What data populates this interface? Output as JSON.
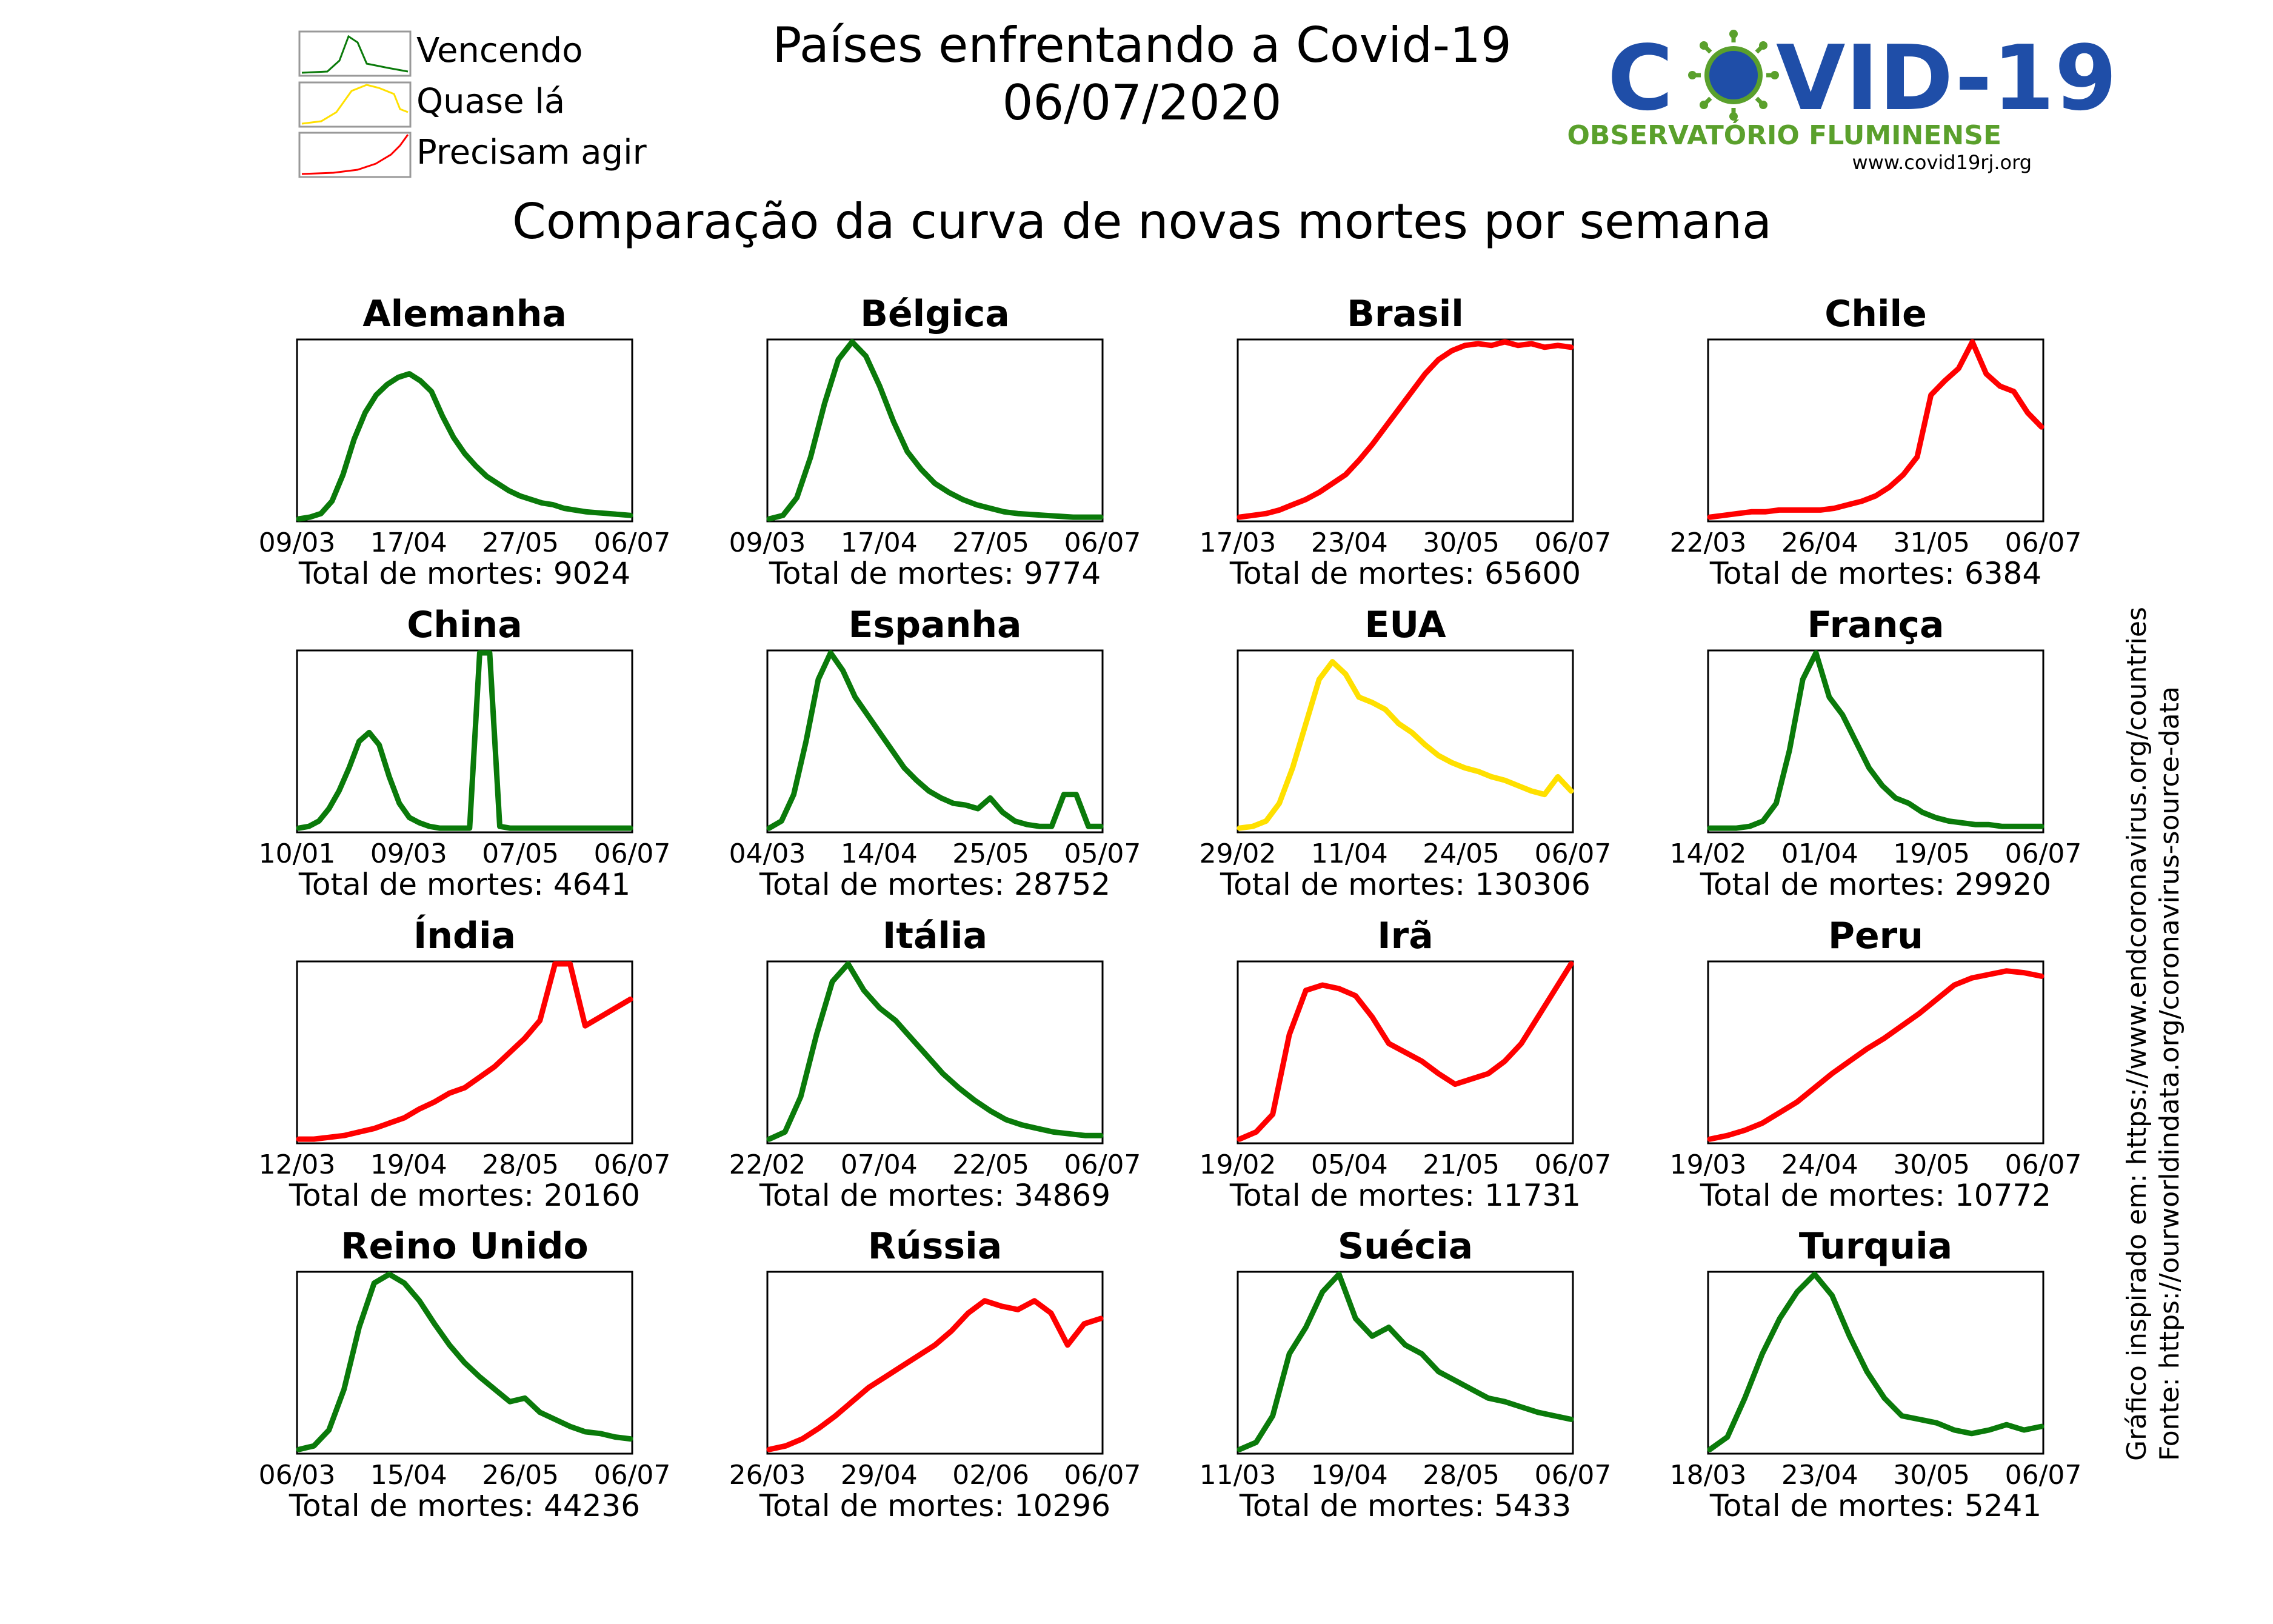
{
  "header": {
    "title_line1": "Países enfrentando a Covid-19",
    "title_line2": "06/07/2020",
    "subtitle": "Comparação da curva de novas mortes por semana"
  },
  "legend": {
    "items": [
      {
        "label": "Vencendo",
        "status": "vencendo"
      },
      {
        "label": "Quase lá",
        "status": "quase"
      },
      {
        "label": "Precisam agir",
        "status": "agir"
      }
    ]
  },
  "logo": {
    "covid_left": "C",
    "covid_right": "VID-19",
    "org": "OBSERVATÓRIO FLUMINENSE",
    "url": "www.covid19rj.org",
    "icon": "virus-icon"
  },
  "side_note": {
    "line1": "Gráfico inspirado em: https://www.endcoronavirus.org/countries",
    "line2": "Fonte: https://ourworldindata.org/coronavirus-source-data"
  },
  "colors": {
    "vencendo": "#0a7a0a",
    "quase": "#ffe000",
    "agir": "#ff0000",
    "logo_blue": "#1f4ea8",
    "logo_green": "#5aa02c"
  },
  "total_prefix": "Total de mortes: ",
  "chart_data": [
    {
      "type": "line",
      "title": "Alemanha",
      "status": "vencendo",
      "total": "9024",
      "xticks": [
        "09/03",
        "17/04",
        "27/05",
        "06/07"
      ],
      "values": [
        0,
        0.01,
        0.03,
        0.1,
        0.25,
        0.45,
        0.6,
        0.7,
        0.76,
        0.8,
        0.82,
        0.78,
        0.72,
        0.58,
        0.46,
        0.37,
        0.3,
        0.24,
        0.2,
        0.16,
        0.13,
        0.11,
        0.09,
        0.08,
        0.06,
        0.05,
        0.04,
        0.035,
        0.03,
        0.025,
        0.02
      ]
    },
    {
      "type": "line",
      "title": "Bélgica",
      "status": "vencendo",
      "total": "9774",
      "xticks": [
        "09/03",
        "17/04",
        "27/05",
        "06/07"
      ],
      "values": [
        0,
        0.02,
        0.12,
        0.35,
        0.65,
        0.9,
        1.0,
        0.92,
        0.75,
        0.55,
        0.38,
        0.28,
        0.2,
        0.15,
        0.11,
        0.08,
        0.06,
        0.04,
        0.03,
        0.025,
        0.02,
        0.015,
        0.01,
        0.01,
        0.01
      ]
    },
    {
      "type": "line",
      "title": "Brasil",
      "status": "agir",
      "total": "65600",
      "xticks": [
        "17/03",
        "23/04",
        "30/05",
        "06/07"
      ],
      "values": [
        0.01,
        0.02,
        0.03,
        0.05,
        0.08,
        0.11,
        0.15,
        0.2,
        0.25,
        0.33,
        0.42,
        0.52,
        0.62,
        0.72,
        0.82,
        0.9,
        0.95,
        0.98,
        0.99,
        0.98,
        1.0,
        0.98,
        0.99,
        0.97,
        0.98,
        0.97
      ]
    },
    {
      "type": "line",
      "title": "Chile",
      "status": "agir",
      "total": "6384",
      "xticks": [
        "22/03",
        "26/04",
        "31/05",
        "06/07"
      ],
      "values": [
        0.01,
        0.02,
        0.03,
        0.04,
        0.04,
        0.05,
        0.05,
        0.05,
        0.05,
        0.06,
        0.08,
        0.1,
        0.13,
        0.18,
        0.25,
        0.35,
        0.7,
        0.78,
        0.85,
        1.0,
        0.82,
        0.75,
        0.72,
        0.6,
        0.52
      ]
    },
    {
      "type": "line",
      "title": "China",
      "status": "vencendo",
      "total": "4641",
      "xticks": [
        "10/01",
        "09/03",
        "07/05",
        "06/07"
      ],
      "values": [
        0.01,
        0.02,
        0.05,
        0.12,
        0.22,
        0.35,
        0.5,
        0.55,
        0.48,
        0.3,
        0.15,
        0.07,
        0.04,
        0.02,
        0.01,
        0.01,
        0.01,
        0.01,
        1.0,
        1.0,
        0.02,
        0.01,
        0.01,
        0.01,
        0.01,
        0.01,
        0.01,
        0.01,
        0.01,
        0.01,
        0.01,
        0.01,
        0.01,
        0.01
      ]
    },
    {
      "type": "line",
      "title": "Espanha",
      "status": "vencendo",
      "total": "28752",
      "xticks": [
        "04/03",
        "14/04",
        "25/05",
        "05/07"
      ],
      "values": [
        0.01,
        0.05,
        0.2,
        0.5,
        0.85,
        1.0,
        0.9,
        0.75,
        0.65,
        0.55,
        0.45,
        0.35,
        0.28,
        0.22,
        0.18,
        0.15,
        0.14,
        0.12,
        0.18,
        0.1,
        0.05,
        0.03,
        0.02,
        0.02,
        0.2,
        0.2,
        0.02,
        0.02
      ]
    },
    {
      "type": "line",
      "title": "EUA",
      "status": "quase",
      "total": "130306",
      "xticks": [
        "29/02",
        "11/04",
        "24/05",
        "06/07"
      ],
      "values": [
        0.01,
        0.02,
        0.05,
        0.15,
        0.35,
        0.6,
        0.85,
        0.95,
        0.88,
        0.75,
        0.72,
        0.68,
        0.6,
        0.55,
        0.48,
        0.42,
        0.38,
        0.35,
        0.33,
        0.3,
        0.28,
        0.25,
        0.22,
        0.2,
        0.3,
        0.22
      ]
    },
    {
      "type": "line",
      "title": "França",
      "status": "vencendo",
      "total": "29920",
      "xticks": [
        "14/02",
        "01/04",
        "19/05",
        "06/07"
      ],
      "values": [
        0.01,
        0.01,
        0.01,
        0.02,
        0.05,
        0.15,
        0.45,
        0.85,
        1.0,
        0.75,
        0.65,
        0.5,
        0.35,
        0.25,
        0.18,
        0.15,
        0.1,
        0.07,
        0.05,
        0.04,
        0.03,
        0.03,
        0.02,
        0.02,
        0.02,
        0.02
      ]
    },
    {
      "type": "line",
      "title": "Índia",
      "status": "agir",
      "total": "20160",
      "xticks": [
        "12/03",
        "19/04",
        "28/05",
        "06/07"
      ],
      "values": [
        0.01,
        0.01,
        0.02,
        0.03,
        0.05,
        0.07,
        0.1,
        0.13,
        0.18,
        0.22,
        0.27,
        0.3,
        0.36,
        0.42,
        0.5,
        0.58,
        0.68,
        1.0,
        1.0,
        0.65,
        0.7,
        0.75,
        0.8
      ]
    },
    {
      "type": "line",
      "title": "Itália",
      "status": "vencendo",
      "total": "34869",
      "xticks": [
        "22/02",
        "07/04",
        "22/05",
        "06/07"
      ],
      "values": [
        0.01,
        0.05,
        0.25,
        0.6,
        0.9,
        1.0,
        0.85,
        0.75,
        0.68,
        0.58,
        0.48,
        0.38,
        0.3,
        0.23,
        0.17,
        0.12,
        0.09,
        0.07,
        0.05,
        0.04,
        0.03,
        0.03
      ]
    },
    {
      "type": "line",
      "title": "Irã",
      "status": "agir",
      "total": "11731",
      "xticks": [
        "19/02",
        "05/04",
        "21/05",
        "06/07"
      ],
      "values": [
        0.01,
        0.05,
        0.15,
        0.6,
        0.85,
        0.88,
        0.86,
        0.82,
        0.7,
        0.55,
        0.5,
        0.45,
        0.38,
        0.32,
        0.35,
        0.38,
        0.45,
        0.55,
        0.7,
        0.85,
        1.0
      ]
    },
    {
      "type": "line",
      "title": "Peru",
      "status": "agir",
      "total": "10772",
      "xticks": [
        "19/03",
        "24/04",
        "30/05",
        "06/07"
      ],
      "values": [
        0.01,
        0.03,
        0.06,
        0.1,
        0.16,
        0.22,
        0.3,
        0.38,
        0.45,
        0.52,
        0.58,
        0.65,
        0.72,
        0.8,
        0.88,
        0.92,
        0.94,
        0.96,
        0.95,
        0.93
      ]
    },
    {
      "type": "line",
      "title": "Reino Unido",
      "status": "vencendo",
      "total": "44236",
      "xticks": [
        "06/03",
        "15/04",
        "26/05",
        "06/07"
      ],
      "values": [
        0.01,
        0.03,
        0.12,
        0.35,
        0.7,
        0.95,
        1.0,
        0.95,
        0.85,
        0.72,
        0.6,
        0.5,
        0.42,
        0.35,
        0.28,
        0.3,
        0.22,
        0.18,
        0.14,
        0.11,
        0.1,
        0.08,
        0.07
      ]
    },
    {
      "type": "line",
      "title": "Rússia",
      "status": "agir",
      "total": "10296",
      "xticks": [
        "26/03",
        "29/04",
        "02/06",
        "06/07"
      ],
      "values": [
        0.01,
        0.03,
        0.07,
        0.13,
        0.2,
        0.28,
        0.36,
        0.42,
        0.48,
        0.54,
        0.6,
        0.68,
        0.78,
        0.85,
        0.82,
        0.8,
        0.85,
        0.78,
        0.6,
        0.72,
        0.75
      ]
    },
    {
      "type": "line",
      "title": "Suécia",
      "status": "vencendo",
      "total": "5433",
      "xticks": [
        "11/03",
        "19/04",
        "28/05",
        "06/07"
      ],
      "values": [
        0.01,
        0.05,
        0.2,
        0.55,
        0.7,
        0.9,
        1.0,
        0.75,
        0.65,
        0.7,
        0.6,
        0.55,
        0.45,
        0.4,
        0.35,
        0.3,
        0.28,
        0.25,
        0.22,
        0.2,
        0.18
      ]
    },
    {
      "type": "line",
      "title": "Turquia",
      "status": "vencendo",
      "total": "5241",
      "xticks": [
        "18/03",
        "23/04",
        "30/05",
        "06/07"
      ],
      "values": [
        0.01,
        0.08,
        0.3,
        0.55,
        0.75,
        0.9,
        1.0,
        0.88,
        0.65,
        0.45,
        0.3,
        0.2,
        0.18,
        0.16,
        0.12,
        0.1,
        0.12,
        0.15,
        0.12,
        0.14
      ]
    }
  ]
}
